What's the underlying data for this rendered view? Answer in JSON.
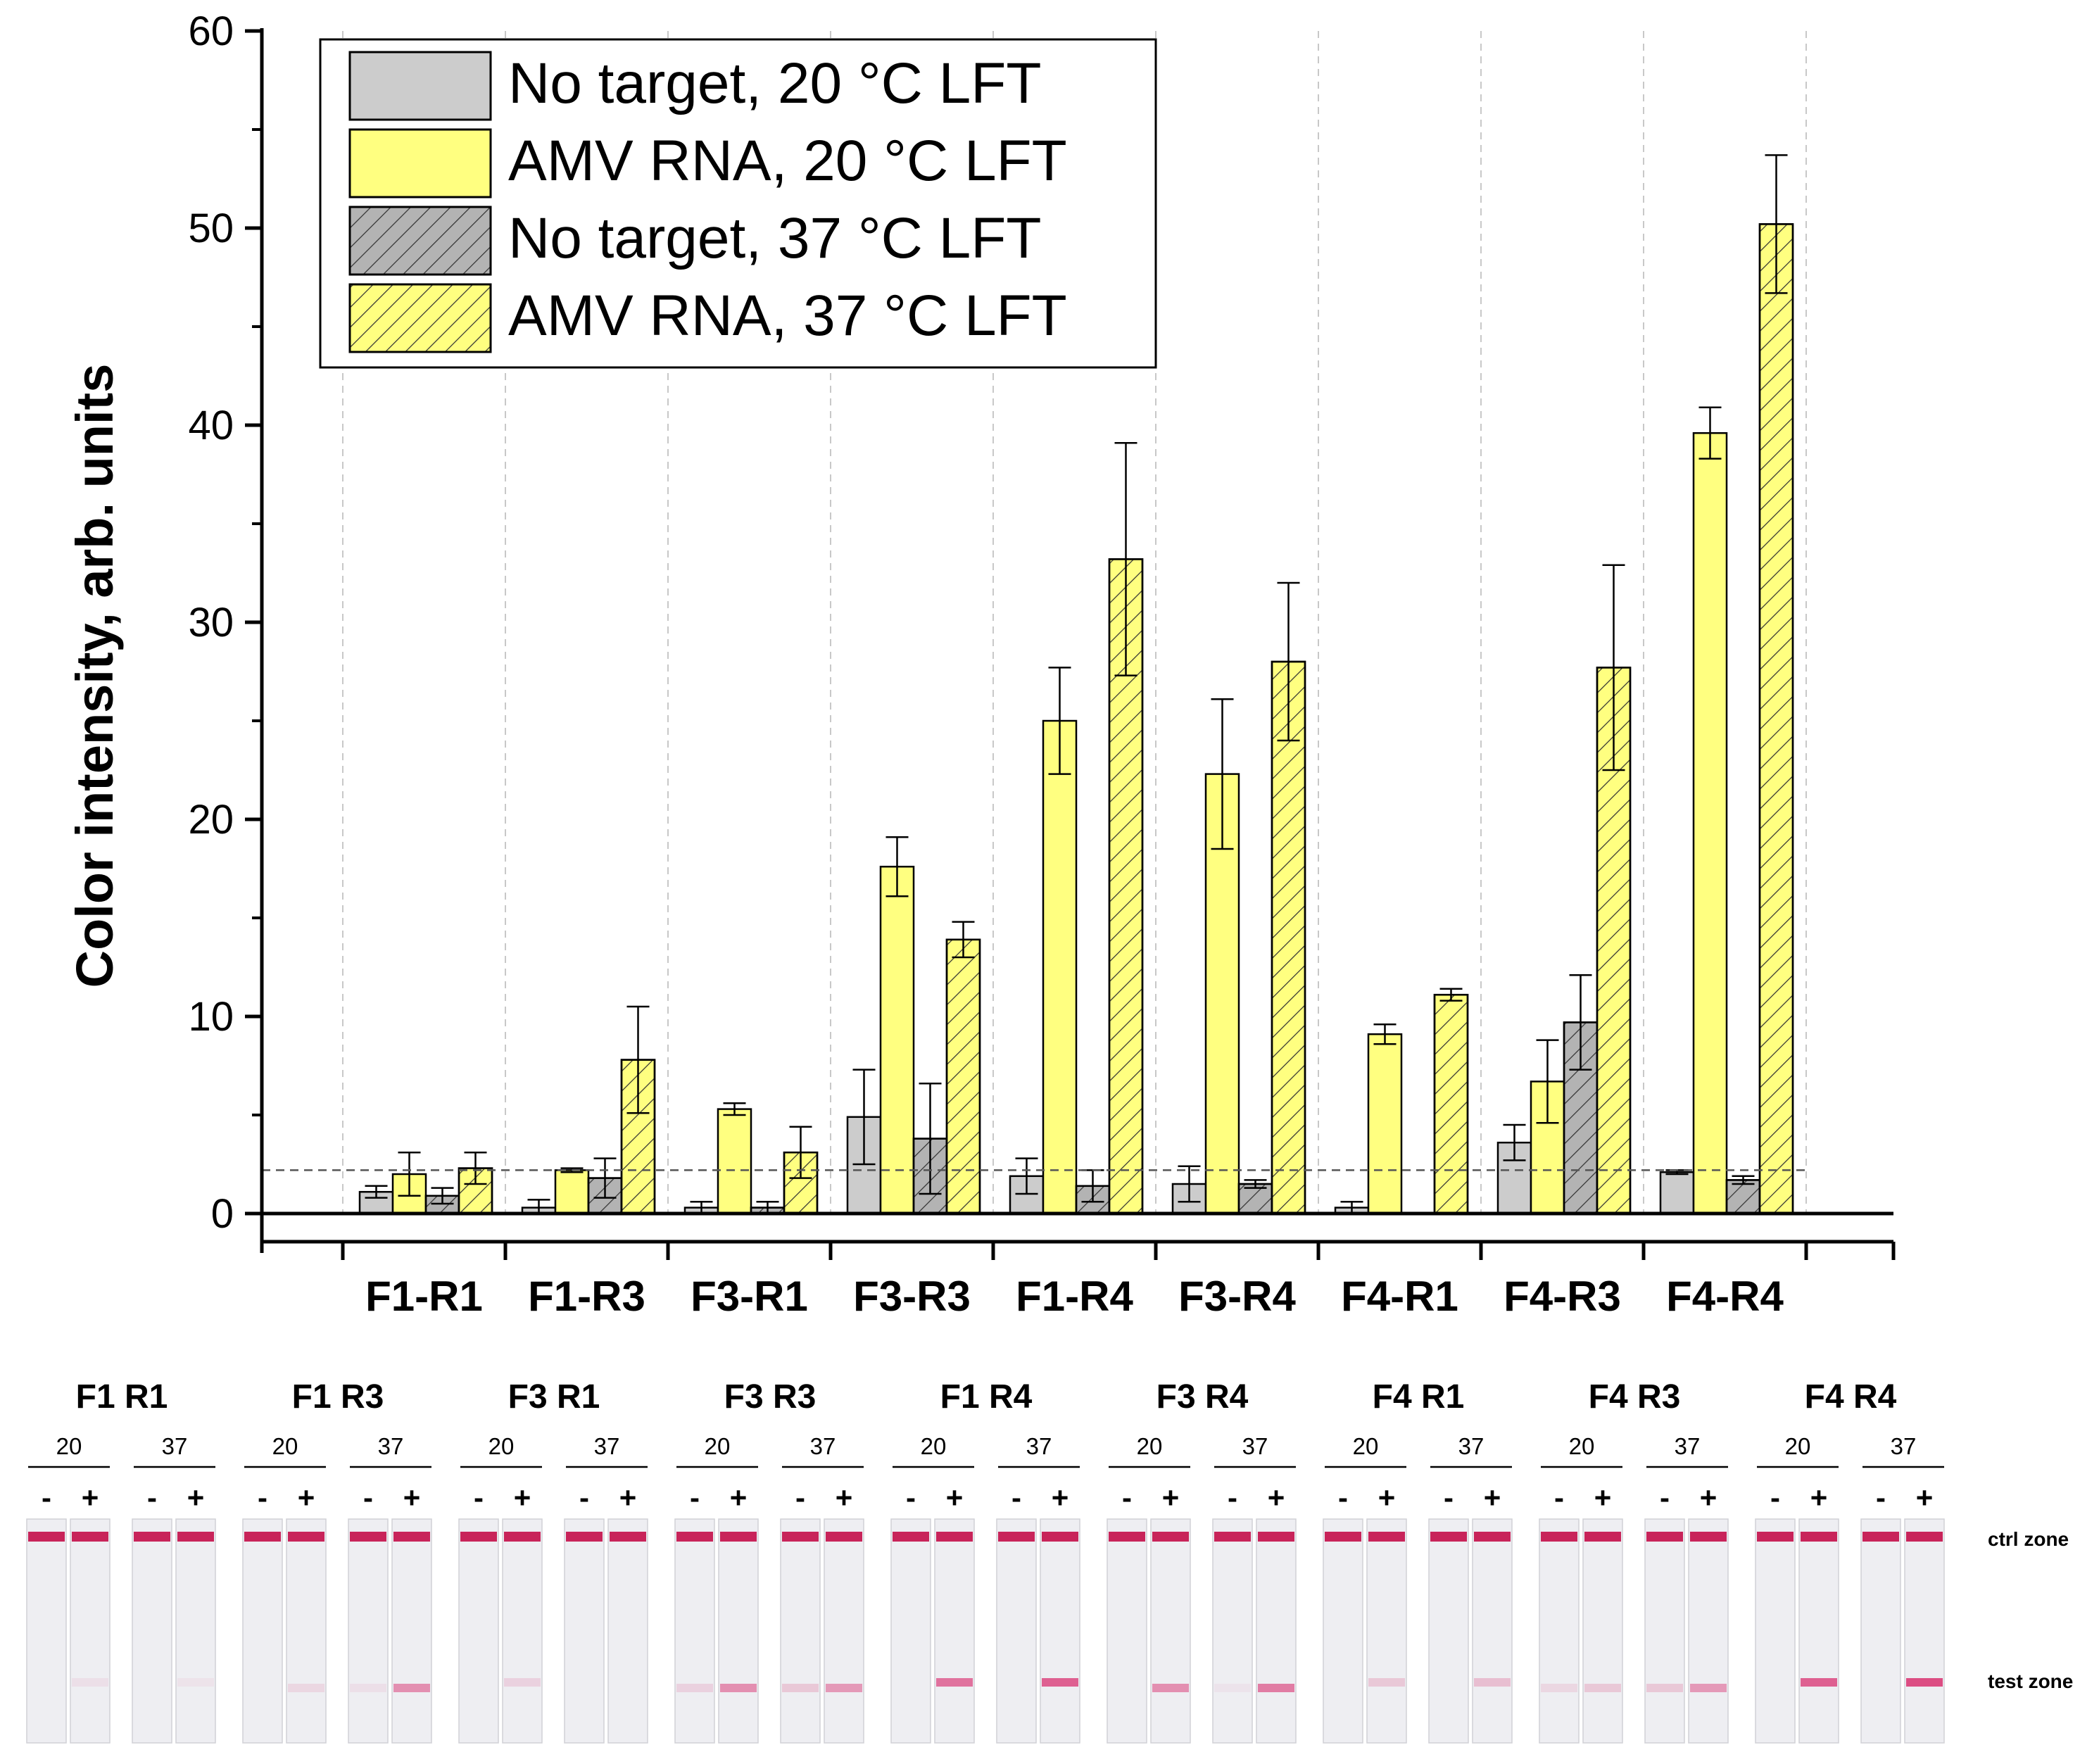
{
  "chart_data": {
    "type": "bar",
    "ylabel": "Color intensity, arb. units",
    "xlabel": "",
    "ylim": [
      0,
      60
    ],
    "yticks": [
      0,
      10,
      20,
      30,
      40,
      50,
      60
    ],
    "categories": [
      "F1-R1",
      "F1-R3",
      "F3-R1",
      "F3-R3",
      "F1-R4",
      "F3-R4",
      "F4-R1",
      "F4-R3",
      "F4-R4"
    ],
    "series": [
      {
        "name": "No target, 20 °C LFT",
        "fill": "#cccccc",
        "hatch": false,
        "values": [
          1.1,
          0.3,
          0.3,
          4.9,
          1.9,
          1.5,
          0.3,
          3.6,
          2.1
        ],
        "errors": [
          0.3,
          0.4,
          0.3,
          2.4,
          0.9,
          0.9,
          0.3,
          0.9,
          0.1
        ]
      },
      {
        "name": "AMV RNA, 20 °C LFT",
        "fill": "#ffff80",
        "hatch": false,
        "values": [
          2.0,
          2.2,
          5.3,
          17.6,
          25.0,
          22.3,
          9.1,
          6.7,
          39.6
        ],
        "errors": [
          1.1,
          0.1,
          0.3,
          1.5,
          2.7,
          3.8,
          0.5,
          2.1,
          1.3
        ]
      },
      {
        "name": "No target, 37 °C LFT",
        "fill": "#b3b3b3",
        "hatch": true,
        "values": [
          0.9,
          1.8,
          0.3,
          3.8,
          1.4,
          1.5,
          0.0,
          9.7,
          1.7
        ],
        "errors": [
          0.4,
          1.0,
          0.3,
          2.8,
          0.8,
          0.2,
          0.0,
          2.4,
          0.2
        ]
      },
      {
        "name": "AMV RNA, 37 °C LFT",
        "fill": "#ffff80",
        "hatch": true,
        "values": [
          2.3,
          7.8,
          3.1,
          13.9,
          33.2,
          28.0,
          11.1,
          27.7,
          50.2
        ],
        "errors": [
          0.8,
          2.7,
          1.3,
          0.9,
          5.9,
          4.0,
          0.3,
          5.2,
          3.5
        ]
      }
    ],
    "threshold": 2.2,
    "legend_position": "top-left",
    "grid": "vertical dashed separators between groups"
  },
  "strips": {
    "groups": [
      {
        "title": "F1  R1",
        "test": [
          0.0,
          0.08,
          0.0,
          0.06
        ]
      },
      {
        "title": "F1  R3",
        "test": [
          0.0,
          0.12,
          0.08,
          0.5
        ]
      },
      {
        "title": "F3  R1",
        "test": [
          0.0,
          0.15,
          0.0,
          0.0
        ]
      },
      {
        "title": "F3  R3",
        "test": [
          0.15,
          0.5,
          0.2,
          0.45
        ]
      },
      {
        "title": "F1  R4",
        "test": [
          0.0,
          0.65,
          0.0,
          0.75
        ]
      },
      {
        "title": "F3  R4",
        "test": [
          0.0,
          0.5,
          0.05,
          0.6
        ]
      },
      {
        "title": "F4  R1",
        "test": [
          0.0,
          0.2,
          0.0,
          0.25
        ]
      },
      {
        "title": "F4  R3",
        "test": [
          0.12,
          0.2,
          0.2,
          0.45
        ]
      },
      {
        "title": "F4  R4",
        "test": [
          0.0,
          0.75,
          0.0,
          0.85
        ]
      }
    ],
    "temp_labels": [
      "20",
      "37"
    ],
    "sign_labels": [
      "-",
      "+"
    ],
    "zone_labels": {
      "ctrl": "ctrl zone",
      "test": "test zone"
    }
  }
}
